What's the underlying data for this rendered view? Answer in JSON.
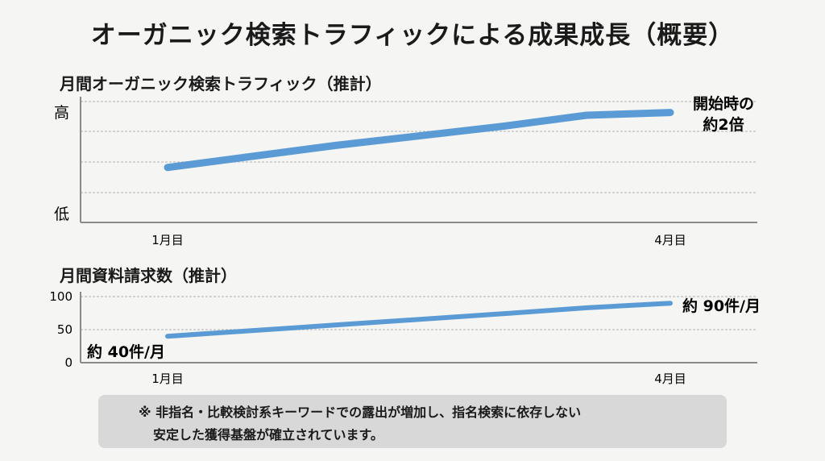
{
  "title": "オーガニック検索トラフィックによる成果成長（概要）",
  "chart_data": [
    {
      "type": "line",
      "title": "月間オーガニック検索トラフィック（推計）",
      "categories": [
        "1月目",
        "4月目"
      ],
      "y_axis": {
        "low_label": "低",
        "high_label": "高"
      },
      "ylim": [
        0,
        2.2
      ],
      "series": [
        {
          "x": [
            1,
            2,
            3,
            3.5,
            4
          ],
          "values": [
            1.0,
            1.4,
            1.75,
            1.95,
            2.0
          ]
        }
      ],
      "annotations": [
        {
          "text_line1": "開始時の",
          "text_line2": "約2倍"
        }
      ],
      "grid": true
    },
    {
      "type": "line",
      "title": "月間資料請求数（推計）",
      "categories": [
        "1月目",
        "4月目"
      ],
      "yticks": [
        "100",
        "50",
        "0"
      ],
      "ylim": [
        0,
        100
      ],
      "series": [
        {
          "x": [
            1,
            2,
            3,
            3.5,
            4
          ],
          "values": [
            40,
            57,
            74,
            83,
            90
          ]
        }
      ],
      "annotations": [
        {
          "start_label": "約 40件/月",
          "end_label": "約 90件/月"
        }
      ],
      "grid": true
    }
  ],
  "note": {
    "line1": "※ 非指名・比較検討系キーワードでの露出が増加し、指名検索に依存しない",
    "line2": "安定した獲得基盤が確立されています。"
  },
  "colors": {
    "line": "#5b9bd5",
    "grid": "#c8c8c8",
    "axis": "#8a8a8a",
    "note_bg": "#d8d8d8"
  }
}
